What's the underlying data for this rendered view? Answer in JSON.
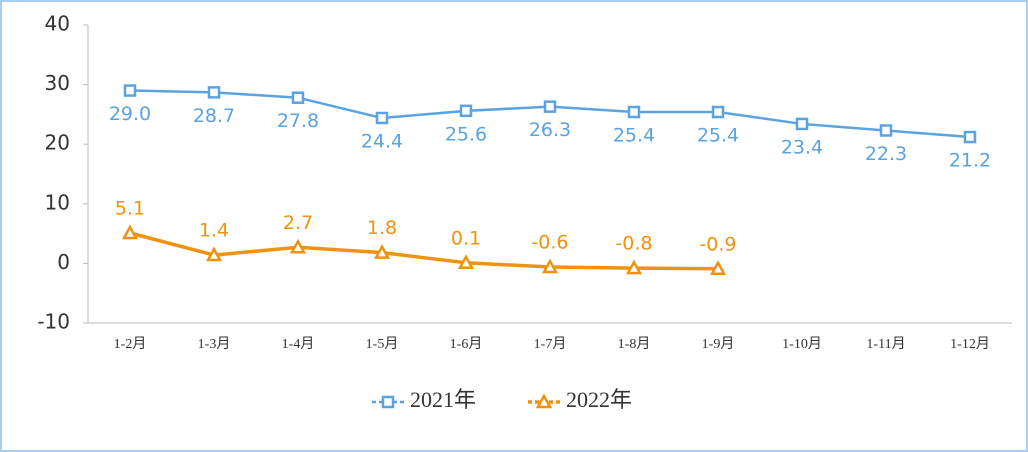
{
  "chart_data": {
    "type": "line",
    "categories": [
      "1-2月",
      "1-3月",
      "1-4月",
      "1-5月",
      "1-6月",
      "1-7月",
      "1-8月",
      "1-9月",
      "1-10月",
      "1-11月",
      "1-12月"
    ],
    "series": [
      {
        "name": "2021年",
        "color": "#5ba3e0",
        "marker": "square",
        "values": [
          29.0,
          28.7,
          27.8,
          24.4,
          25.6,
          26.3,
          25.4,
          25.4,
          23.4,
          22.3,
          21.2
        ],
        "value_labels": [
          "29.0",
          "28.7",
          "27.8",
          "24.4",
          "25.6",
          "26.3",
          "25.4",
          "25.4",
          "23.4",
          "22.3",
          "21.2"
        ]
      },
      {
        "name": "2022年",
        "color": "#f0920e",
        "marker": "triangle",
        "values": [
          5.1,
          1.4,
          2.7,
          1.8,
          0.1,
          -0.6,
          -0.8,
          -0.9,
          null,
          null,
          null
        ],
        "value_labels": [
          "5.1",
          "1.4",
          "2.7",
          "1.8",
          "0.1",
          "-0.6",
          "-0.8",
          "-0.9",
          null,
          null,
          null
        ]
      }
    ],
    "ylim": [
      -10,
      40
    ],
    "yticks": [
      -10,
      0,
      10,
      20,
      30,
      40
    ],
    "grid": false,
    "legend": "bottom"
  }
}
